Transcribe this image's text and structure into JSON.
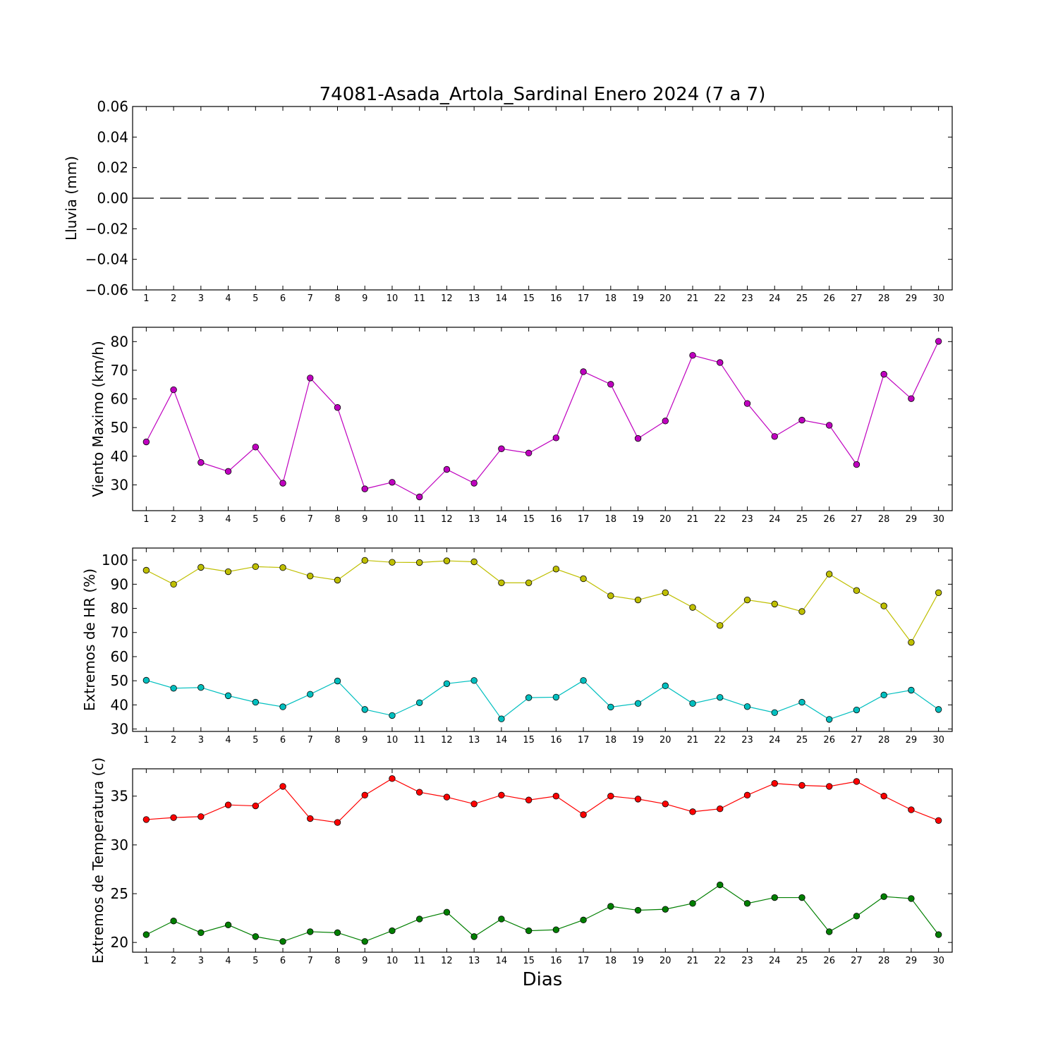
{
  "figure_title": "74081-Asada_Artola_Sardinal Enero 2024  (7 a 7)",
  "x_axis_label": "Dias",
  "chart_data": [
    {
      "type": "line",
      "ylabel": "Lluvia (mm)",
      "ylim": [
        -0.06,
        0.06
      ],
      "yticks": [
        "0.06",
        "0.04",
        "0.02",
        "0.00",
        "−0.02",
        "−0.04",
        "−0.06"
      ],
      "ytick_values": [
        0.06,
        0.04,
        0.02,
        0.0,
        -0.02,
        -0.04,
        -0.06
      ],
      "x": [
        1,
        2,
        3,
        4,
        5,
        6,
        7,
        8,
        9,
        10,
        11,
        12,
        13,
        14,
        15,
        16,
        17,
        18,
        19,
        20,
        21,
        22,
        23,
        24,
        25,
        26,
        27,
        28,
        29,
        30
      ],
      "series": [
        {
          "color": "#000000",
          "style": "dashed",
          "markers": false,
          "values": [
            0,
            0,
            0,
            0,
            0,
            0,
            0,
            0,
            0,
            0,
            0,
            0,
            0,
            0,
            0,
            0,
            0,
            0,
            0,
            0,
            0,
            0,
            0,
            0,
            0,
            0,
            0,
            0,
            0,
            0
          ]
        }
      ]
    },
    {
      "type": "line",
      "ylabel": "Viento Maximo (km/h)",
      "ylim": [
        21,
        85
      ],
      "yticks": [
        "30",
        "40",
        "50",
        "60",
        "70",
        "80"
      ],
      "ytick_values": [
        30,
        40,
        50,
        60,
        70,
        80
      ],
      "x": [
        1,
        2,
        3,
        4,
        5,
        6,
        7,
        8,
        9,
        10,
        11,
        12,
        13,
        14,
        15,
        16,
        17,
        18,
        19,
        20,
        21,
        22,
        23,
        24,
        25,
        26,
        27,
        28,
        29,
        30
      ],
      "series": [
        {
          "color": "#bf00bf",
          "style": "solid",
          "markers": true,
          "values": [
            45.0,
            63.2,
            37.8,
            34.7,
            43.2,
            30.6,
            67.3,
            57.0,
            28.6,
            30.9,
            25.8,
            35.4,
            30.6,
            42.6,
            41.1,
            46.4,
            69.5,
            65.1,
            46.2,
            52.3,
            75.2,
            72.7,
            58.4,
            46.9,
            52.6,
            50.8,
            37.1,
            68.6,
            60.1,
            80.1
          ]
        }
      ]
    },
    {
      "type": "line",
      "ylabel": "Extremos de HR (%)",
      "ylim": [
        29,
        105
      ],
      "yticks": [
        "30",
        "40",
        "50",
        "60",
        "70",
        "80",
        "90",
        "100"
      ],
      "ytick_values": [
        30,
        40,
        50,
        60,
        70,
        80,
        90,
        100
      ],
      "x": [
        1,
        2,
        3,
        4,
        5,
        6,
        7,
        8,
        9,
        10,
        11,
        12,
        13,
        14,
        15,
        16,
        17,
        18,
        19,
        20,
        21,
        22,
        23,
        24,
        25,
        26,
        27,
        28,
        29,
        30
      ],
      "series": [
        {
          "color": "#bfbf00",
          "style": "solid",
          "markers": true,
          "values": [
            95.8,
            90.0,
            97.0,
            95.2,
            97.3,
            96.9,
            93.4,
            91.7,
            99.9,
            99.1,
            99.0,
            99.7,
            99.3,
            90.6,
            90.6,
            96.3,
            92.3,
            85.2,
            83.5,
            86.5,
            80.4,
            72.9,
            83.5,
            81.8,
            78.7,
            94.2,
            87.4,
            81.0,
            65.9,
            86.5
          ]
        },
        {
          "color": "#00bfbf",
          "style": "solid",
          "markers": true,
          "values": [
            50.2,
            46.9,
            47.2,
            43.8,
            41.1,
            39.2,
            44.4,
            49.9,
            38.1,
            35.6,
            40.9,
            48.8,
            50.1,
            34.2,
            43.0,
            43.2,
            50.1,
            39.1,
            40.6,
            47.9,
            40.6,
            43.1,
            39.3,
            36.8,
            41.1,
            34.0,
            37.9,
            44.1,
            46.1,
            38.1
          ]
        }
      ]
    },
    {
      "type": "line",
      "ylabel": "Extremos de Temperatura (c)",
      "ylim": [
        19,
        37.8
      ],
      "yticks": [
        "20",
        "25",
        "30",
        "35"
      ],
      "ytick_values": [
        20,
        25,
        30,
        35
      ],
      "x": [
        1,
        2,
        3,
        4,
        5,
        6,
        7,
        8,
        9,
        10,
        11,
        12,
        13,
        14,
        15,
        16,
        17,
        18,
        19,
        20,
        21,
        22,
        23,
        24,
        25,
        26,
        27,
        28,
        29,
        30
      ],
      "series": [
        {
          "color": "#ff0000",
          "style": "solid",
          "markers": true,
          "values": [
            32.6,
            32.8,
            32.9,
            34.1,
            34.0,
            36.0,
            32.7,
            32.3,
            35.1,
            36.8,
            35.4,
            34.9,
            34.2,
            35.1,
            34.6,
            35.0,
            33.1,
            35.0,
            34.7,
            34.2,
            33.4,
            33.7,
            35.1,
            36.3,
            36.1,
            36.0,
            36.5,
            35.0,
            33.6,
            32.5
          ]
        },
        {
          "color": "#007f00",
          "style": "solid",
          "markers": true,
          "values": [
            20.8,
            22.2,
            21.0,
            21.8,
            20.6,
            20.1,
            21.1,
            21.0,
            20.1,
            21.2,
            22.4,
            23.1,
            20.6,
            22.4,
            21.2,
            21.3,
            22.3,
            23.7,
            23.3,
            23.4,
            24.0,
            25.9,
            24.0,
            24.6,
            24.6,
            21.1,
            22.7,
            24.7,
            24.5,
            20.8
          ]
        }
      ]
    }
  ]
}
